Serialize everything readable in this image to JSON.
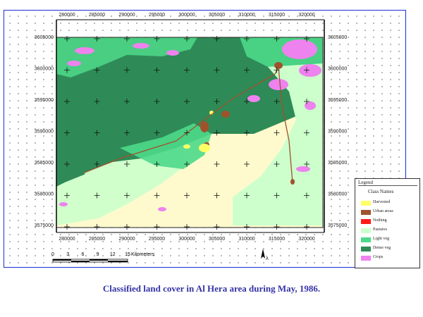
{
  "map": {
    "x_labels_top": [
      "280000",
      "285000",
      "290000",
      "295000",
      "300000",
      "305000",
      "310000",
      "315000",
      "320000"
    ],
    "x_labels_bottom": [
      "280000",
      "285000",
      "290000",
      "295000",
      "300000",
      "305000",
      "310000",
      "315000",
      "320000"
    ],
    "y_labels_left": [
      "3605000",
      "3600000",
      "3595000",
      "3590000",
      "3585000",
      "3580000",
      "3575000"
    ],
    "y_labels_right": [
      "3605000",
      "3600000",
      "3595000",
      "3590000",
      "3585000",
      "3580000",
      "3575000"
    ]
  },
  "scale_bar": {
    "ticks": [
      "0",
      "3",
      "6",
      "9",
      "12",
      "15"
    ],
    "unit": "Kilometers"
  },
  "north_arrow": {
    "icon": "north-arrow-icon"
  },
  "legend": {
    "title": "Legend",
    "subtitle": "Class Names",
    "items": [
      {
        "label": "Harvested",
        "color": "#ffff66"
      },
      {
        "label": "Urban areas",
        "color": "#a0522d"
      },
      {
        "label": "Nothing",
        "color": "#ff1a1a"
      },
      {
        "label": "Pastures",
        "color": "#ccffcc"
      },
      {
        "label": "Light veg",
        "color": "#4dd98a"
      },
      {
        "label": "Dense veg",
        "color": "#2e8b57"
      },
      {
        "label": "Crops",
        "color": "#ee82ee"
      }
    ]
  },
  "caption": "Classified land cover in Al Hera area during  May, 1986."
}
